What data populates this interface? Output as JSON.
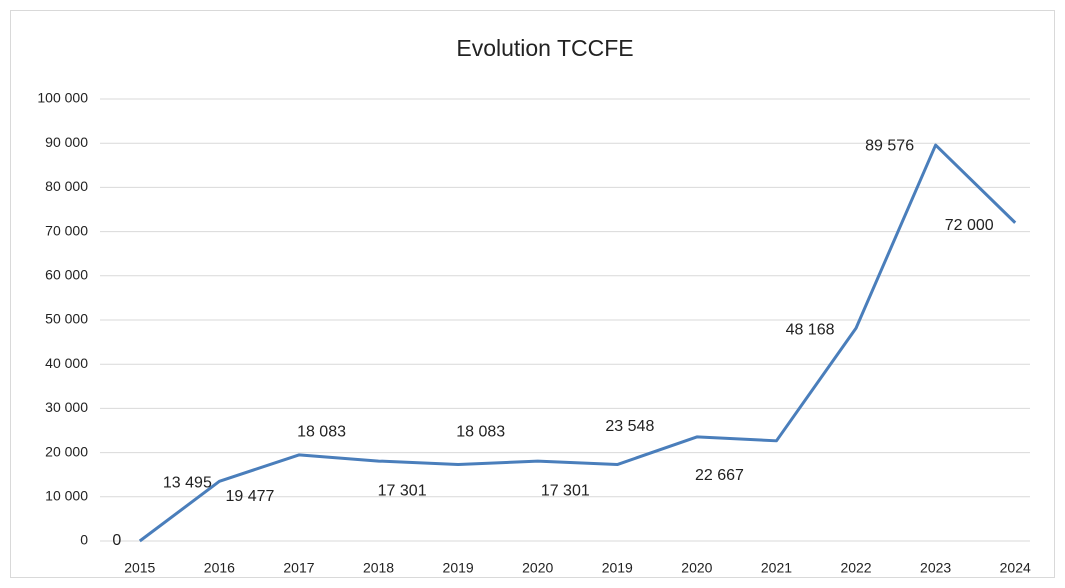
{
  "chart_data": {
    "type": "line",
    "title": "Evolution TCCFE",
    "categories": [
      "2015",
      "2016",
      "2017",
      "2018",
      "2019",
      "2020",
      "2019",
      "2020",
      "2021",
      "2022",
      "2023",
      "2024"
    ],
    "series": [
      {
        "name": "TCCFE",
        "color": "#4a7ebb",
        "values": [
          0,
          13495,
          19477,
          18083,
          17301,
          18083,
          17301,
          23548,
          22667,
          48168,
          89576,
          72000
        ],
        "value_labels": [
          "0",
          "13 495",
          "19 477",
          "18 083",
          "17 301",
          "18 083",
          "17 301",
          "23 548",
          "22 667",
          "48 168",
          "89 576",
          "72 000"
        ]
      }
    ],
    "ylim": [
      0,
      100000
    ],
    "yticks": [
      0,
      {
        "value": 10000,
        "label": "10 000"
      },
      {
        "value": 20000,
        "label": "20 000"
      },
      {
        "value": 30000,
        "label": "30 000"
      },
      {
        "value": 40000,
        "label": "40 000"
      },
      {
        "value": 50000,
        "label": "50 000"
      },
      {
        "value": 60000,
        "label": "60 000"
      },
      {
        "value": 70000,
        "label": "70 000"
      },
      {
        "value": 80000,
        "label": "80 000"
      },
      {
        "value": 90000,
        "label": "90 000"
      },
      {
        "value": 100000,
        "label": "100 000"
      }
    ],
    "grid": true
  }
}
